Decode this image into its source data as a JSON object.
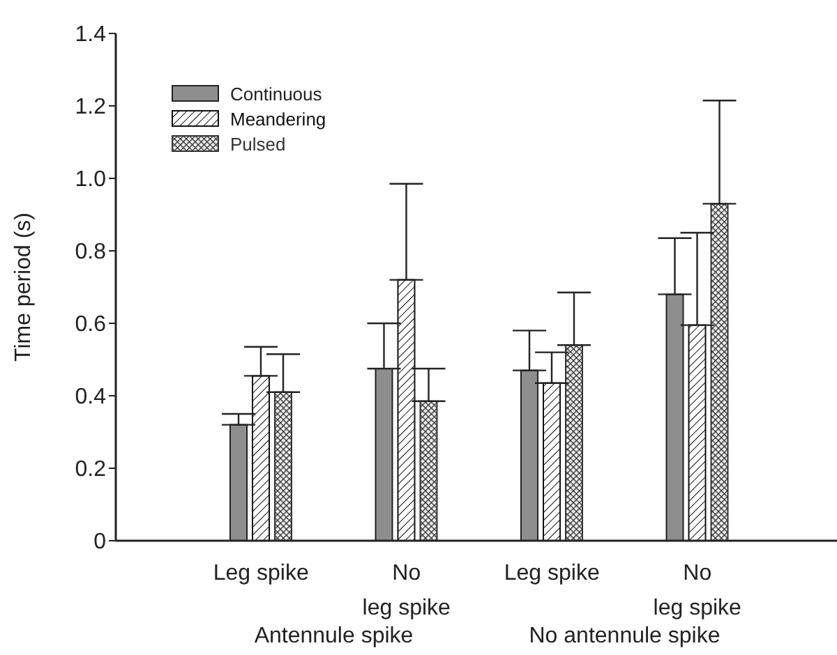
{
  "chart_data": {
    "type": "bar",
    "ylabel": "Time period (s)",
    "categories": [
      "Leg spike",
      "No\nleg spike",
      "Leg spike",
      "No\nleg spike"
    ],
    "series": [
      {
        "name": "Continuous",
        "color": "#8e8e8e",
        "values": [
          0.32,
          0.475,
          0.47,
          0.68
        ],
        "errors": [
          [
            0.32,
            0.35
          ],
          [
            0.475,
            0.6
          ],
          [
            0.47,
            0.58
          ],
          [
            0.68,
            0.835
          ]
        ]
      },
      {
        "name": "Meandering",
        "color": "#111111",
        "values": [
          0.455,
          0.72,
          0.435,
          0.595
        ],
        "errors": [
          [
            0.455,
            0.535
          ],
          [
            0.72,
            0.985
          ],
          [
            0.435,
            0.52
          ],
          [
            0.595,
            0.85
          ]
        ]
      },
      {
        "name": "Pulsed",
        "color": "#333333",
        "values": [
          0.41,
          0.385,
          0.54,
          0.93
        ],
        "errors": [
          [
            0.41,
            0.515
          ],
          [
            0.385,
            0.475
          ],
          [
            0.54,
            0.685
          ],
          [
            0.93,
            1.215
          ]
        ]
      }
    ],
    "annotations": [
      "Antennule spike",
      "No antennule spike"
    ],
    "ylim": [
      0,
      1.4
    ],
    "yticks": [
      0,
      0.2,
      0.4,
      0.6,
      0.8,
      {
        "value": 1,
        "label": "1.0"
      },
      1.2,
      1.4
    ],
    "grid": false,
    "legend": "top left"
  }
}
